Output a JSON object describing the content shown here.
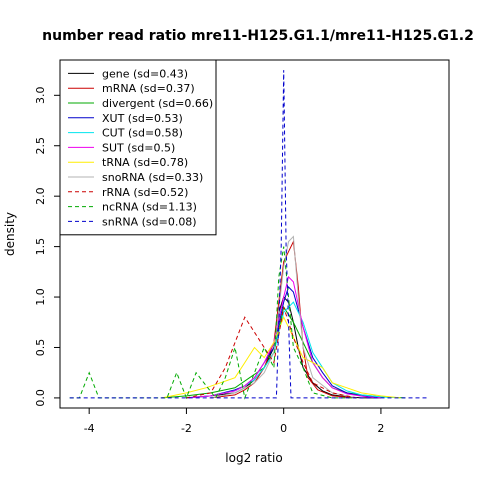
{
  "chart_data": {
    "type": "line",
    "title": "number read ratio mre11-H125.G1.1/mre11-H125.G1.2",
    "xlabel": "log2 ratio",
    "ylabel": "density",
    "xlim": [
      -4.6,
      3.4
    ],
    "ylim": [
      -0.1,
      3.35
    ],
    "xticks": [
      -4,
      -2,
      0,
      2
    ],
    "yticks": [
      0.0,
      0.5,
      1.0,
      1.5,
      2.0,
      2.5,
      3.0
    ],
    "xtick_labels": [
      "-4",
      "-2",
      "0",
      "2"
    ],
    "ytick_labels": [
      "0.0",
      "0.5",
      "1.0",
      "1.5",
      "2.0",
      "2.5",
      "3.0"
    ],
    "legend_position": "top-left",
    "grid": false,
    "series": [
      {
        "name": "gene (sd=0.43)",
        "color": "#000000",
        "dash": "solid",
        "x": [
          -2.0,
          -1.5,
          -1.0,
          -0.8,
          -0.6,
          -0.4,
          -0.2,
          -0.1,
          0.0,
          0.1,
          0.2,
          0.3,
          0.4,
          0.6,
          0.8,
          1.0,
          1.3,
          1.6,
          2.0
        ],
        "y": [
          0.0,
          0.02,
          0.05,
          0.1,
          0.18,
          0.3,
          0.5,
          0.85,
          1.0,
          0.95,
          0.75,
          0.5,
          0.3,
          0.15,
          0.07,
          0.03,
          0.01,
          0.0,
          0.0
        ]
      },
      {
        "name": "mRNA (sd=0.37)",
        "color": "#cc0000",
        "dash": "solid",
        "x": [
          -1.5,
          -1.0,
          -0.8,
          -0.6,
          -0.4,
          -0.2,
          0.0,
          0.1,
          0.2,
          0.3,
          0.4,
          0.5,
          0.7,
          1.0,
          1.5
        ],
        "y": [
          0.0,
          0.03,
          0.08,
          0.15,
          0.3,
          0.55,
          1.35,
          1.45,
          1.55,
          1.1,
          0.5,
          0.2,
          0.08,
          0.02,
          0.0
        ]
      },
      {
        "name": "divergent (sd=0.66)",
        "color": "#00aa00",
        "dash": "solid",
        "x": [
          -2.5,
          -2.0,
          -1.5,
          -1.0,
          -0.7,
          -0.4,
          -0.2,
          0.0,
          0.2,
          0.4,
          0.6,
          0.8,
          1.0,
          1.3,
          1.6,
          2.0,
          2.5
        ],
        "y": [
          0.0,
          0.02,
          0.05,
          0.1,
          0.2,
          0.3,
          0.45,
          0.9,
          0.75,
          0.55,
          0.35,
          0.2,
          0.1,
          0.05,
          0.03,
          0.01,
          0.0
        ]
      },
      {
        "name": "XUT (sd=0.53)",
        "color": "#0000cc",
        "dash": "solid",
        "x": [
          -2.0,
          -1.5,
          -1.0,
          -0.8,
          -0.6,
          -0.4,
          -0.2,
          0.0,
          0.1,
          0.2,
          0.4,
          0.6,
          0.8,
          1.0,
          1.3,
          1.6,
          2.0
        ],
        "y": [
          0.0,
          0.02,
          0.08,
          0.12,
          0.2,
          0.35,
          0.5,
          0.95,
          1.1,
          1.05,
          0.7,
          0.4,
          0.25,
          0.12,
          0.05,
          0.02,
          0.0
        ]
      },
      {
        "name": "CUT (sd=0.58)",
        "color": "#00e5ee",
        "dash": "solid",
        "x": [
          -2.0,
          -1.5,
          -1.0,
          -0.8,
          -0.6,
          -0.4,
          -0.2,
          0.0,
          0.2,
          0.4,
          0.6,
          0.8,
          1.0,
          1.3,
          1.6,
          2.0,
          2.4
        ],
        "y": [
          0.0,
          0.02,
          0.07,
          0.12,
          0.18,
          0.3,
          0.45,
          0.85,
          0.95,
          0.75,
          0.45,
          0.3,
          0.15,
          0.07,
          0.03,
          0.01,
          0.0
        ]
      },
      {
        "name": "SUT (sd=0.5)",
        "color": "#ee00ee",
        "dash": "solid",
        "x": [
          -2.0,
          -1.5,
          -1.0,
          -0.8,
          -0.6,
          -0.4,
          -0.2,
          0.0,
          0.1,
          0.2,
          0.4,
          0.6,
          0.8,
          1.0,
          1.3,
          1.7,
          2.0
        ],
        "y": [
          0.0,
          0.02,
          0.07,
          0.12,
          0.2,
          0.35,
          0.55,
          1.0,
          1.2,
          1.15,
          0.7,
          0.35,
          0.2,
          0.1,
          0.04,
          0.01,
          0.0
        ]
      },
      {
        "name": "tRNA (sd=0.78)",
        "color": "#ffee00",
        "dash": "solid",
        "x": [
          -2.5,
          -2.0,
          -1.6,
          -1.3,
          -1.0,
          -0.8,
          -0.6,
          -0.4,
          -0.2,
          0.0,
          0.2,
          0.4,
          0.6,
          0.8,
          1.0,
          1.3,
          1.6,
          2.0,
          2.4
        ],
        "y": [
          0.0,
          0.05,
          0.1,
          0.15,
          0.2,
          0.35,
          0.5,
          0.4,
          0.55,
          0.8,
          0.6,
          0.4,
          0.35,
          0.3,
          0.15,
          0.1,
          0.05,
          0.02,
          0.0
        ]
      },
      {
        "name": "snoRNA (sd=0.33)",
        "color": "#b3b3b3",
        "dash": "solid",
        "x": [
          -1.5,
          -1.0,
          -0.6,
          -0.4,
          -0.2,
          0.0,
          0.1,
          0.2,
          0.3,
          0.4,
          0.6,
          1.0,
          1.5
        ],
        "y": [
          0.0,
          0.05,
          0.15,
          0.25,
          0.45,
          1.3,
          1.55,
          1.6,
          1.0,
          0.5,
          0.2,
          0.05,
          0.0
        ]
      },
      {
        "name": "rRNA (sd=0.52)",
        "color": "#cc0000",
        "dash": "dashed",
        "x": [
          -2.0,
          -1.5,
          -1.2,
          -0.8,
          -0.6,
          -0.4,
          -0.2,
          0.0,
          0.2,
          0.4,
          0.6,
          1.0,
          1.5
        ],
        "y": [
          0.0,
          0.05,
          0.3,
          0.8,
          0.65,
          0.5,
          0.35,
          0.9,
          0.6,
          0.35,
          0.15,
          0.05,
          0.0
        ]
      },
      {
        "name": "ncRNA (sd=1.13)",
        "color": "#00aa00",
        "dash": "dashed",
        "x": [
          -4.4,
          -4.2,
          -4.0,
          -3.8,
          -3.6,
          -2.4,
          -2.2,
          -2.0,
          -1.8,
          -1.4,
          -1.2,
          -1.0,
          -0.8,
          -0.6,
          -0.4,
          -0.2,
          -0.1,
          0.0,
          0.2,
          0.4,
          0.6,
          1.0,
          1.5
        ],
        "y": [
          0.0,
          0.0,
          0.25,
          0.0,
          0.0,
          0.0,
          0.25,
          0.0,
          0.25,
          0.0,
          0.2,
          0.5,
          0.0,
          0.25,
          0.5,
          0.3,
          1.2,
          1.5,
          0.5,
          0.3,
          0.05,
          0.0,
          0.0
        ]
      },
      {
        "name": "snRNA (sd=0.08)",
        "color": "#0000cc",
        "dash": "dashed",
        "x": [
          -4.4,
          -3.0,
          -0.3,
          -0.15,
          -0.05,
          0.0,
          0.05,
          0.15,
          0.3,
          3.0
        ],
        "y": [
          0.0,
          0.0,
          0.0,
          0.0,
          1.5,
          3.25,
          1.5,
          0.0,
          0.0,
          0.0
        ]
      }
    ]
  }
}
